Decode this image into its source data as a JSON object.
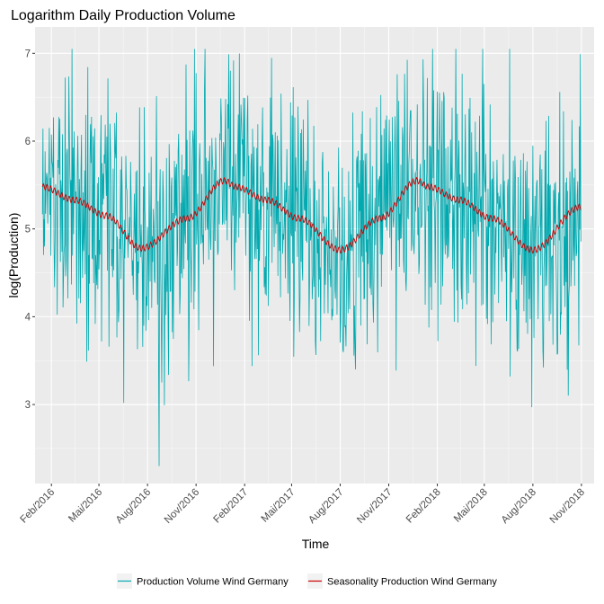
{
  "chart_data": {
    "type": "line",
    "title": "Logarithm Daily Production Volume",
    "xlabel": "Time",
    "ylabel": "log(Production)",
    "x_range": [
      "2016-01-01",
      "2018-11-25"
    ],
    "ylim": [
      2.1,
      7.3
    ],
    "y_ticks": [
      3,
      4,
      5,
      6,
      7
    ],
    "x_ticks": [
      {
        "date": "2016-02-01",
        "label": "Feb/2016"
      },
      {
        "date": "2016-05-01",
        "label": "Mai/2016"
      },
      {
        "date": "2016-08-01",
        "label": "Aug/2016"
      },
      {
        "date": "2016-11-01",
        "label": "Nov/2016"
      },
      {
        "date": "2017-02-01",
        "label": "Feb/2017"
      },
      {
        "date": "2017-05-01",
        "label": "Mai/2017"
      },
      {
        "date": "2017-08-01",
        "label": "Aug/2017"
      },
      {
        "date": "2017-11-01",
        "label": "Nov/2017"
      },
      {
        "date": "2018-02-01",
        "label": "Feb/2018"
      },
      {
        "date": "2018-05-01",
        "label": "Mai/2018"
      },
      {
        "date": "2018-08-01",
        "label": "Aug/2018"
      },
      {
        "date": "2018-11-01",
        "label": "Nov/2018"
      }
    ],
    "grid": true,
    "legend_position": "bottom",
    "series": [
      {
        "name": "Production Volume Wind Germany",
        "color": "#00aab0",
        "style": "daily fluctuating values, approx. range 2.3 to 7.05",
        "x_start": "2016-01-15",
        "x_end": "2018-10-31"
      },
      {
        "name": "Seasonality Production Wind Germany",
        "color": "#cc0000",
        "x": [
          "2016-01-15",
          "2016-03-15",
          "2016-05-15",
          "2016-07-20",
          "2016-10-15",
          "2016-12-25",
          "2017-01-15",
          "2017-03-15",
          "2017-05-15",
          "2017-08-01",
          "2017-10-15",
          "2017-12-25",
          "2018-01-15",
          "2018-03-15",
          "2018-05-15",
          "2018-08-01",
          "2018-10-31"
        ],
        "y": [
          5.48,
          5.33,
          5.15,
          4.78,
          5.12,
          5.55,
          5.48,
          5.33,
          5.12,
          4.76,
          5.12,
          5.55,
          5.48,
          5.33,
          5.12,
          4.76,
          5.25
        ]
      }
    ]
  }
}
